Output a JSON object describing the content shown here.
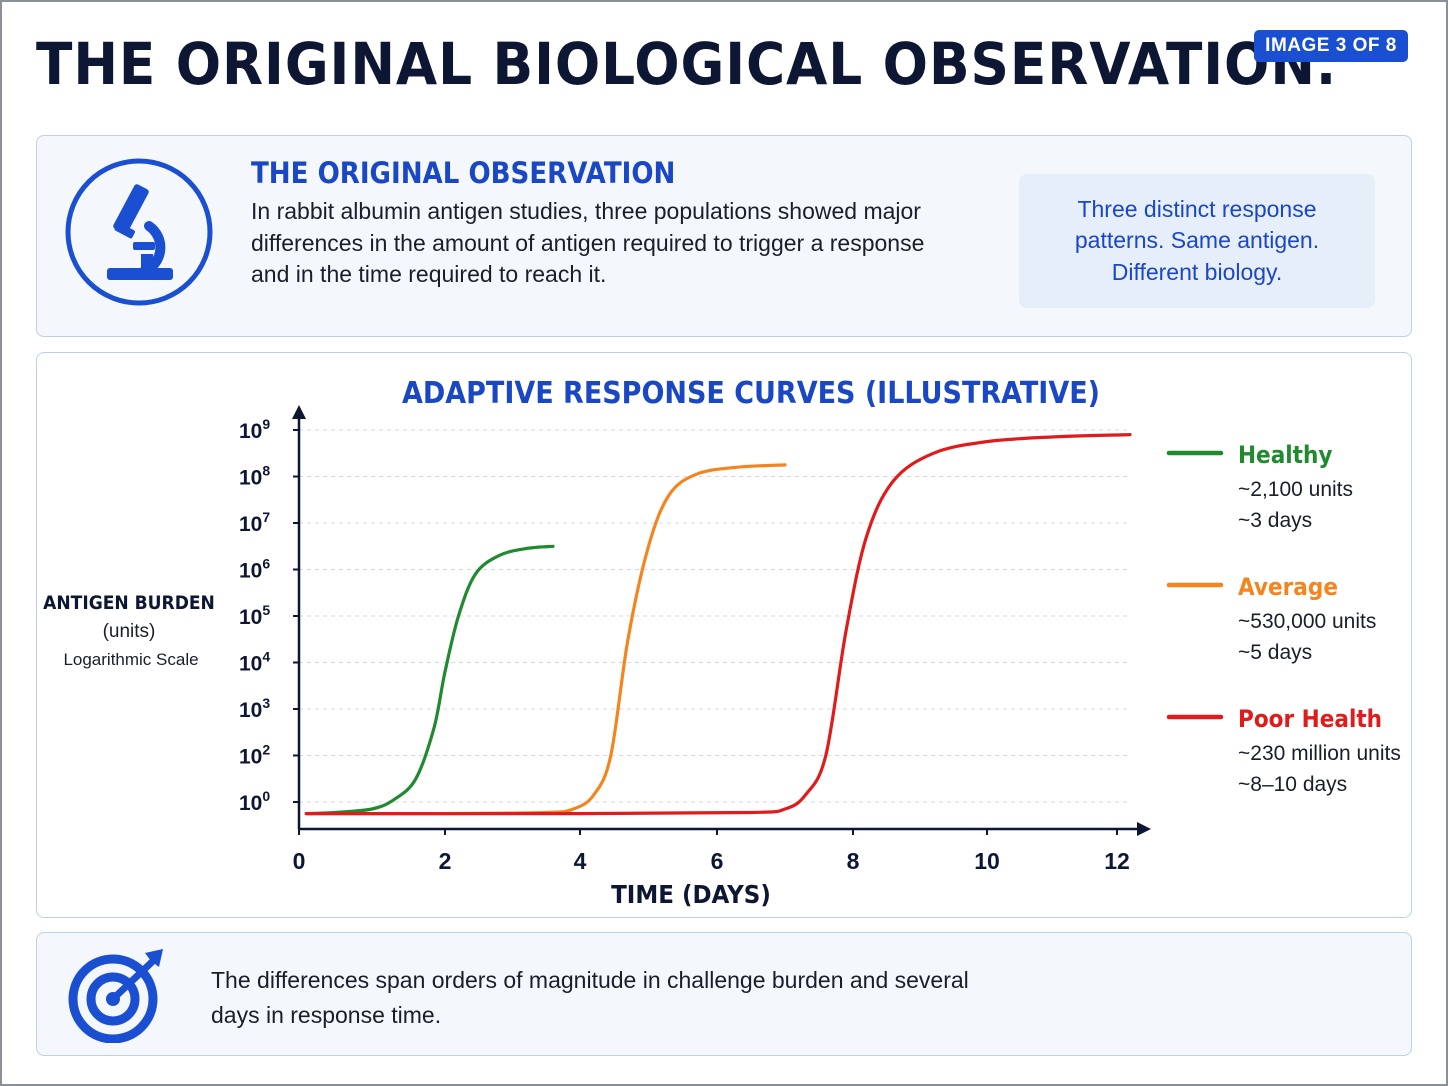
{
  "header": {
    "title": "THE ORIGINAL BIOLOGICAL OBSERVATION.",
    "badge": "IMAGE 3 OF 8"
  },
  "observation": {
    "icon": "microscope-icon",
    "title": "THE ORIGINAL OBSERVATION",
    "text": "In rabbit albumin antigen studies, three populations showed major differences in the amount of antigen required to trigger a response and in the time required to reach it.",
    "callout": "Three distinct response patterns. Same antigen. Different biology."
  },
  "conclusion": {
    "icon": "target-icon",
    "text": "The differences span orders of magnitude in challenge burden and several days in response time."
  },
  "colors": {
    "accent": "#1a4fd1",
    "healthy": "#1f8a2e",
    "average": "#f5841f",
    "poor": "#e01b1b"
  },
  "chart_data": {
    "type": "line",
    "title": "ADAPTIVE RESPONSE CURVES (ILLUSTRATIVE)",
    "xlabel": "TIME (DAYS)",
    "ylabel": "ANTIGEN BURDEN",
    "ylabel_units": "(units)",
    "ylabel_scale": "Logarithmic Scale",
    "y_scale": "log",
    "x_ticks": [
      0,
      2,
      4,
      6,
      8,
      10,
      12
    ],
    "y_ticks": [
      {
        "base": "10",
        "exp": "0"
      },
      {
        "base": "10",
        "exp": "2"
      },
      {
        "base": "10",
        "exp": "3"
      },
      {
        "base": "10",
        "exp": "4"
      },
      {
        "base": "10",
        "exp": "5"
      },
      {
        "base": "10",
        "exp": "6"
      },
      {
        "base": "10",
        "exp": "7"
      },
      {
        "base": "10",
        "exp": "8"
      },
      {
        "base": "10",
        "exp": "9"
      }
    ],
    "grid": true,
    "legend_position": "right",
    "series": [
      {
        "name": "Healthy",
        "detail_amount": "~2,100 units",
        "detail_time": "~3 days",
        "color": "#1f8a2e",
        "points": [
          [
            0.1,
            -0.5
          ],
          [
            0.5,
            -0.45
          ],
          [
            1.0,
            -0.3
          ],
          [
            1.3,
            0.1
          ],
          [
            1.6,
            1.0
          ],
          [
            1.85,
            2.6
          ],
          [
            2.0,
            3.8
          ],
          [
            2.2,
            5.0
          ],
          [
            2.45,
            5.9
          ],
          [
            2.8,
            6.3
          ],
          [
            3.2,
            6.45
          ],
          [
            3.6,
            6.5
          ]
        ]
      },
      {
        "name": "Average",
        "detail_amount": "~530,000 units",
        "detail_time": "~5 days",
        "color": "#f5841f",
        "points": [
          [
            0.1,
            -0.5
          ],
          [
            2.0,
            -0.5
          ],
          [
            3.5,
            -0.45
          ],
          [
            3.9,
            -0.3
          ],
          [
            4.2,
            0.3
          ],
          [
            4.45,
            2.0
          ],
          [
            4.7,
            4.5
          ],
          [
            5.0,
            6.5
          ],
          [
            5.3,
            7.6
          ],
          [
            5.7,
            8.05
          ],
          [
            6.3,
            8.2
          ],
          [
            7.0,
            8.25
          ]
        ]
      },
      {
        "name": "Poor Health",
        "detail_amount": "~230 million units",
        "detail_time": "~8–10 days",
        "color": "#e01b1b",
        "points": [
          [
            0.1,
            -0.5
          ],
          [
            4.0,
            -0.5
          ],
          [
            6.5,
            -0.45
          ],
          [
            7.0,
            -0.3
          ],
          [
            7.3,
            0.3
          ],
          [
            7.6,
            2.0
          ],
          [
            7.9,
            4.7
          ],
          [
            8.2,
            6.7
          ],
          [
            8.6,
            7.9
          ],
          [
            9.2,
            8.5
          ],
          [
            10.0,
            8.75
          ],
          [
            11.0,
            8.85
          ],
          [
            12.2,
            8.9
          ]
        ]
      }
    ]
  }
}
